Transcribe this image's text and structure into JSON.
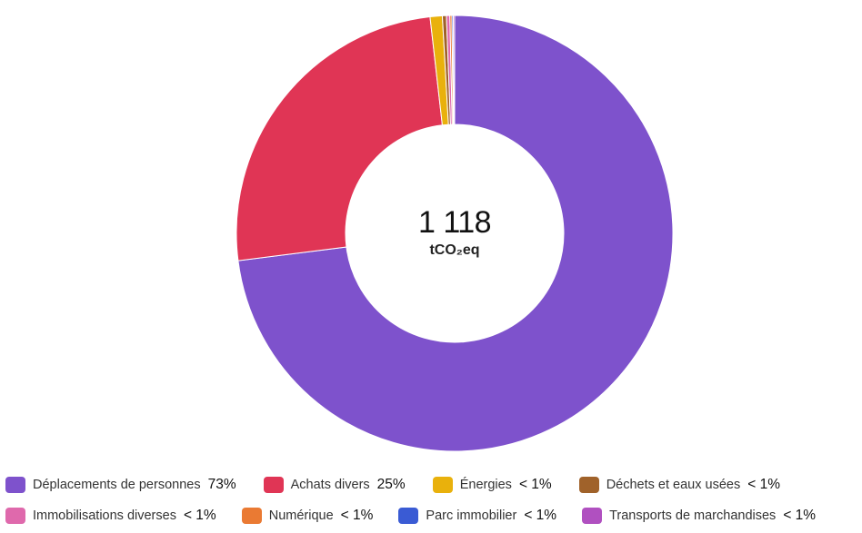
{
  "chart_data": {
    "type": "pie",
    "variant": "donut",
    "center_total": "1 118",
    "center_unit": "tCO₂eq",
    "start_angle_deg": 0,
    "direction": "clockwise",
    "legend_position": "bottom",
    "categories": [
      {
        "label": "Déplacements de personnes",
        "pct_label": "73%",
        "value": 73.0,
        "color": "#7e52cc"
      },
      {
        "label": "Achats divers",
        "pct_label": "25%",
        "value": 25.2,
        "color": "#e03555"
      },
      {
        "label": "Énergies",
        "pct_label": "< 1%",
        "value": 0.9,
        "color": "#e9b10c"
      },
      {
        "label": "Déchets et eaux usées",
        "pct_label": "< 1%",
        "value": 0.3,
        "color": "#a0622a"
      },
      {
        "label": "Immobilisations diverses",
        "pct_label": "< 1%",
        "value": 0.25,
        "color": "#df69ac"
      },
      {
        "label": "Numérique",
        "pct_label": "< 1%",
        "value": 0.15,
        "color": "#ea7a33"
      },
      {
        "label": "Parc immobilier",
        "pct_label": "< 1%",
        "value": 0.1,
        "color": "#3a5bd4"
      },
      {
        "label": "Transports de marchandises",
        "pct_label": "< 1%",
        "value": 0.1,
        "color": "#b050c0"
      }
    ]
  }
}
